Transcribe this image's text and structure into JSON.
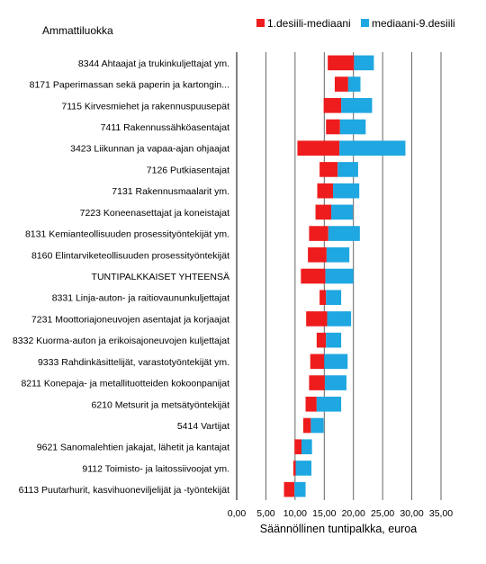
{
  "chart_data": {
    "type": "bar",
    "orientation": "horizontal",
    "stacked": true,
    "corner_label": "Ammattiluokka",
    "xlabel": "Säännöllinen tuntipalkka, euroa",
    "xlim": [
      0,
      35
    ],
    "x_ticks": [
      "0,00",
      "5,00",
      "10,00",
      "15,00",
      "20,00",
      "25,00",
      "30,00",
      "35,00"
    ],
    "grid": true,
    "legend_position": "top-right",
    "colors": {
      "series_1": "#ee1c1c",
      "series_2": "#1ea7e1",
      "grid": "#555555"
    },
    "categories": [
      "8344   Ahtaajat ja trukinkuljettajat ym.",
      "8171   Paperimassan sekä paperin ja kartongin...",
      "7115   Kirvesmiehet ja rakennuspuusepät",
      "7411   Rakennussähköasentajat",
      "3423  Liikunnan ja vapaa-ajan ohjaajat",
      "7126   Putkiasentajat",
      "7131   Rakennusmaalarit ym.",
      "7223   Koneenasettajat ja koneistajat",
      "8131   Kemianteollisuuden prosessityöntekijät ym.",
      "8160   Elintarviketeollisuuden prosessityöntekijät",
      "TUNTIPALKKAISET YHTEENSÄ",
      "8331   Linja-auton- ja raitiovaununkuljettajat",
      "7231   Moottoriajoneuvojen asentajat ja korjaajat",
      "8332  Kuorma-auton ja erikoisajoneuvojen kuljettajat",
      "9333   Rahdinkäsittelijät, varastotyöntekijät ym.",
      "8211   Konepaja- ja metallituotteiden kokoonpanijat",
      "6210   Metsurit ja metsätyöntekijät",
      "5414   Vartijat",
      "9621   Sanomalehtien jakajat, lähetit ja kantajat",
      "9112   Toimisto- ja laitossiivoojat ym.",
      "6113  Puutarhurit, kasvihuoneviljelijät ja -työntekijät"
    ],
    "series": [
      {
        "name": "1.desiili-mediaani",
        "start": [
          15.6,
          16.8,
          14.9,
          15.3,
          10.4,
          14.2,
          13.8,
          13.5,
          12.4,
          12.2,
          11.0,
          14.2,
          11.9,
          13.7,
          12.6,
          12.4,
          11.8,
          11.4,
          9.9,
          9.7,
          8.1
        ],
        "end": [
          20.1,
          19.1,
          17.9,
          17.7,
          17.6,
          17.3,
          16.5,
          16.2,
          15.7,
          15.4,
          15.2,
          15.3,
          15.5,
          15.3,
          15.0,
          15.1,
          13.7,
          12.7,
          11.1,
          10.1,
          9.9
        ]
      },
      {
        "name": "mediaani-9.desiili",
        "start": [
          20.1,
          19.1,
          17.9,
          17.7,
          17.6,
          17.3,
          16.5,
          16.2,
          15.7,
          15.4,
          15.2,
          15.3,
          15.5,
          15.3,
          15.0,
          15.1,
          13.7,
          12.7,
          11.1,
          10.1,
          9.9
        ],
        "end": [
          23.5,
          21.2,
          23.2,
          22.1,
          28.9,
          20.8,
          21.0,
          19.9,
          21.1,
          19.3,
          20.0,
          17.9,
          19.6,
          17.9,
          19.0,
          18.8,
          17.9,
          14.9,
          12.9,
          12.8,
          11.8
        ]
      }
    ]
  }
}
